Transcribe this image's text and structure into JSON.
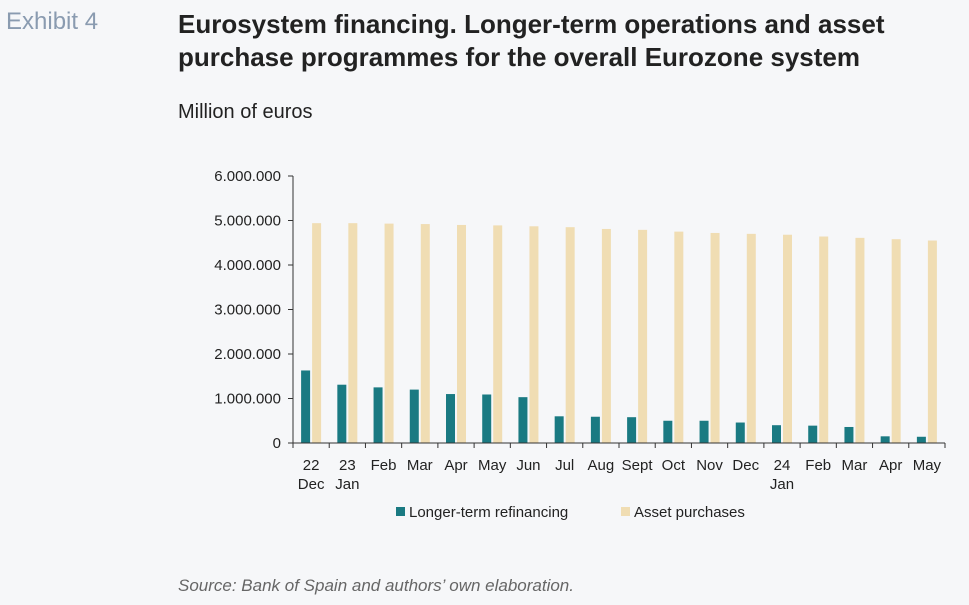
{
  "exhibit_label": "Exhibit 4",
  "title": "Eurosystem financing. Longer-term operations and asset purchase programmes for the overall Eurozone system",
  "source": "Source: Bank of Spain and authors’ own elaboration.",
  "colors": {
    "refinancing": "#1a7a82",
    "assets": "#f0ddb3",
    "axis": "#333333",
    "text": "#222222"
  },
  "chart_data": {
    "type": "bar",
    "ylabel": "Million of euros",
    "ylim": [
      0,
      6000000
    ],
    "yticks": [
      "0",
      "1.000.000",
      "2.000.000",
      "3.000.000",
      "4.000.000",
      "5.000.000",
      "6.000.000"
    ],
    "categories": [
      "22 Dec",
      "23 Jan",
      "Feb",
      "Mar",
      "Apr",
      "May",
      "Jun",
      "Jul",
      "Aug",
      "Sept",
      "Oct",
      "Nov",
      "Dec",
      "24 Jan",
      "Feb",
      "Mar",
      "Apr",
      "May"
    ],
    "category_lines": [
      [
        "22",
        "Dec"
      ],
      [
        "23",
        "Jan"
      ],
      [
        "Feb"
      ],
      [
        "Mar"
      ],
      [
        "Apr"
      ],
      [
        "May"
      ],
      [
        "Jun"
      ],
      [
        "Jul"
      ],
      [
        "Aug"
      ],
      [
        "Sept"
      ],
      [
        "Oct"
      ],
      [
        "Nov"
      ],
      [
        "Dec"
      ],
      [
        "24",
        "Jan"
      ],
      [
        "Feb"
      ],
      [
        "Mar"
      ],
      [
        "Apr"
      ],
      [
        "May"
      ]
    ],
    "series": [
      {
        "name": "Longer-term refinancing",
        "values": [
          1630000,
          1310000,
          1250000,
          1200000,
          1100000,
          1090000,
          1030000,
          600000,
          590000,
          580000,
          500000,
          500000,
          460000,
          400000,
          390000,
          360000,
          150000,
          140000
        ]
      },
      {
        "name": "Asset purchases",
        "values": [
          4940000,
          4940000,
          4930000,
          4920000,
          4900000,
          4890000,
          4870000,
          4850000,
          4810000,
          4790000,
          4750000,
          4720000,
          4700000,
          4680000,
          4640000,
          4610000,
          4580000,
          4550000
        ]
      }
    ],
    "legend_position": "bottom",
    "grid": false
  }
}
